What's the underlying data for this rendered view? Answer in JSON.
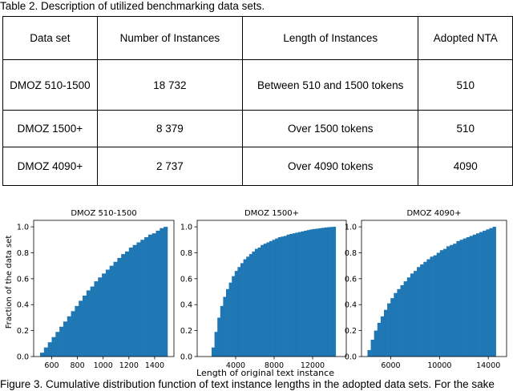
{
  "table": {
    "caption": "Table 2. Description of utilized benchmarking data sets.",
    "headers": [
      "Data set",
      "Number of Instances",
      "Length of Instances",
      "Adopted NTA"
    ],
    "rows": [
      [
        "DMOZ 510-1500",
        "18 732",
        "Between 510 and 1500 tokens",
        "510"
      ],
      [
        "DMOZ 1500+",
        "8 379",
        "Over 1500 tokens",
        "510"
      ],
      [
        "DMOZ 4090+",
        "2 737",
        "Over 4090 tokens",
        "4090"
      ]
    ]
  },
  "figure": {
    "caption": "Figure 3. Cumulative distribution function of text instance lengths in the adopted data sets. For the sake",
    "ylabel": "Fraction of the data set",
    "xlabel": "Length of original text instance",
    "bar_color": "#1f77b4"
  },
  "chart_data": [
    {
      "type": "bar",
      "title": "DMOZ 510-1500",
      "xlim": [
        460,
        1550
      ],
      "ylim": [
        0,
        1.05
      ],
      "xticks": [
        600,
        800,
        1000,
        1200,
        1400
      ],
      "yticks": [
        0.0,
        0.2,
        0.4,
        0.6,
        0.8,
        1.0
      ],
      "x": [
        510,
        540,
        570,
        600,
        630,
        660,
        690,
        720,
        750,
        780,
        810,
        840,
        870,
        900,
        930,
        960,
        990,
        1020,
        1050,
        1080,
        1110,
        1140,
        1170,
        1200,
        1230,
        1260,
        1290,
        1320,
        1350,
        1380,
        1410,
        1440,
        1470
      ],
      "values": [
        0.03,
        0.07,
        0.11,
        0.15,
        0.19,
        0.23,
        0.27,
        0.31,
        0.35,
        0.39,
        0.43,
        0.47,
        0.51,
        0.54,
        0.58,
        0.61,
        0.64,
        0.67,
        0.7,
        0.73,
        0.76,
        0.79,
        0.81,
        0.84,
        0.86,
        0.88,
        0.9,
        0.92,
        0.94,
        0.95,
        0.97,
        0.99,
        1.0
      ],
      "xlabel": "",
      "ylabel": "Fraction of the data set"
    },
    {
      "type": "bar",
      "title": "DMOZ 1500+",
      "xlim": [
        0,
        15500
      ],
      "ylim": [
        0,
        1.05
      ],
      "xticks": [
        4000,
        8000,
        12000
      ],
      "yticks": [
        0.0,
        0.2,
        0.4,
        0.6,
        0.8,
        1.0
      ],
      "x": [
        1500,
        1800,
        2100,
        2400,
        2700,
        3000,
        3300,
        3600,
        3900,
        4200,
        4500,
        4800,
        5100,
        5400,
        5700,
        6000,
        6300,
        6600,
        6900,
        7200,
        7500,
        7800,
        8100,
        8400,
        8700,
        9000,
        9300,
        9600,
        9900,
        10200,
        10500,
        10800,
        11100,
        11400,
        11700,
        12000,
        12300,
        12600,
        12900,
        13200,
        13500,
        13800,
        14100
      ],
      "values": [
        0.07,
        0.19,
        0.3,
        0.39,
        0.46,
        0.52,
        0.57,
        0.62,
        0.66,
        0.69,
        0.72,
        0.75,
        0.77,
        0.79,
        0.81,
        0.83,
        0.84,
        0.86,
        0.87,
        0.88,
        0.89,
        0.9,
        0.91,
        0.92,
        0.925,
        0.93,
        0.94,
        0.945,
        0.95,
        0.955,
        0.96,
        0.965,
        0.97,
        0.975,
        0.98,
        0.983,
        0.986,
        0.989,
        0.992,
        0.995,
        0.997,
        0.999,
        1.0
      ],
      "xlabel": "Length of original text instance",
      "ylabel": ""
    },
    {
      "type": "bar",
      "title": "DMOZ 4090+",
      "xlim": [
        3600,
        15500
      ],
      "ylim": [
        0,
        1.05
      ],
      "xticks": [
        6000,
        10000,
        14000
      ],
      "yticks": [
        0.0,
        0.2,
        0.4,
        0.6,
        0.8,
        1.0
      ],
      "x": [
        4090,
        4360,
        4630,
        4900,
        5170,
        5440,
        5710,
        5980,
        6250,
        6520,
        6790,
        7060,
        7330,
        7600,
        7870,
        8140,
        8410,
        8680,
        8950,
        9220,
        9490,
        9760,
        10030,
        10300,
        10570,
        10840,
        11110,
        11380,
        11650,
        11920,
        12190,
        12460,
        12730,
        13000,
        13270,
        13540,
        13810,
        14080,
        14350
      ],
      "values": [
        0.05,
        0.13,
        0.2,
        0.26,
        0.31,
        0.36,
        0.41,
        0.45,
        0.49,
        0.52,
        0.55,
        0.58,
        0.61,
        0.64,
        0.66,
        0.69,
        0.71,
        0.73,
        0.75,
        0.77,
        0.78,
        0.8,
        0.82,
        0.83,
        0.85,
        0.86,
        0.87,
        0.89,
        0.9,
        0.91,
        0.92,
        0.93,
        0.94,
        0.95,
        0.96,
        0.97,
        0.98,
        0.99,
        1.0
      ],
      "xlabel": "",
      "ylabel": ""
    }
  ]
}
